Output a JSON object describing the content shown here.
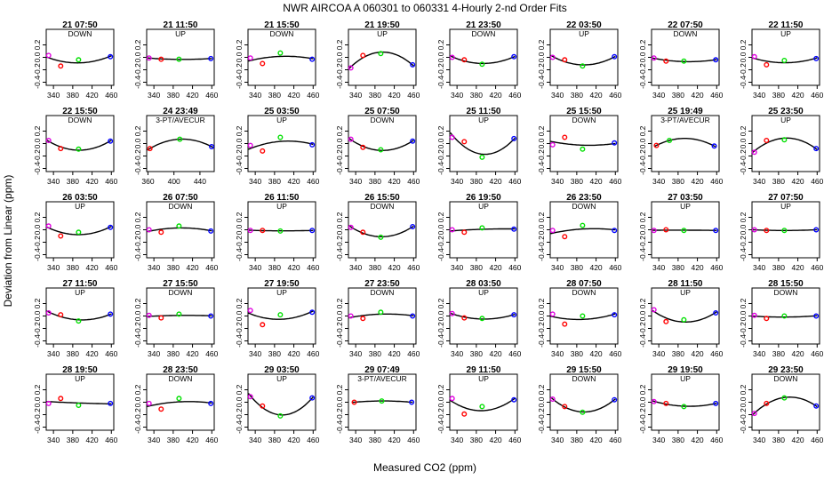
{
  "figure": {
    "title": "NWR   AIRCOA A    060301 to 060331   4-Hourly 2-nd Order Fits",
    "xlabel": "Measured CO2 (ppm)",
    "ylabel": "Deviation from Linear (ppm)"
  },
  "colors": {
    "lo": "#e000e0",
    "mid": "#ff0000",
    "hi": "#00e000",
    "top": "#0000ff",
    "curve": "#000000"
  },
  "chart_data": {
    "type": "scatter",
    "x_ticks_default": [
      340,
      380,
      420,
      460
    ],
    "xlim_default": [
      325,
      465
    ],
    "y_ticks": [
      0.2,
      0.0,
      -0.2,
      -0.4
    ],
    "y_tick_labels": [
      "0.2",
      "0.0",
      "-0.2",
      "-0.4"
    ],
    "ylim": [
      -0.45,
      0.45
    ],
    "panels": [
      {
        "time": "21 07:50",
        "label": "DOWN",
        "y": [
          0.03,
          -0.14,
          -0.04,
          0.01
        ]
      },
      {
        "time": "21 11:50",
        "label": "UP",
        "y": [
          -0.01,
          -0.03,
          -0.03,
          -0.02
        ]
      },
      {
        "time": "21 15:50",
        "label": "DOWN",
        "y": [
          -0.01,
          -0.1,
          0.07,
          -0.03
        ]
      },
      {
        "time": "21 19:50",
        "label": "UP",
        "y": [
          -0.17,
          0.03,
          0.06,
          -0.12
        ]
      },
      {
        "time": "21 23:50",
        "label": "DOWN",
        "y": [
          0.0,
          -0.04,
          -0.11,
          0.01
        ]
      },
      {
        "time": "22 03:50",
        "label": "UP",
        "y": [
          0.0,
          -0.04,
          -0.14,
          0.01
        ]
      },
      {
        "time": "22 07:50",
        "label": "DOWN",
        "y": [
          -0.01,
          -0.06,
          -0.06,
          -0.04
        ]
      },
      {
        "time": "22 11:50",
        "label": "UP",
        "y": [
          0.01,
          -0.12,
          -0.05,
          -0.02
        ]
      },
      {
        "time": "22 15:50",
        "label": "DOWN",
        "y": [
          0.05,
          -0.08,
          -0.09,
          0.04
        ]
      },
      {
        "time": "24 23:49",
        "label": "3-PT/AVECUR",
        "y": [
          -0.08,
          0.07,
          -0.05
        ],
        "x": [
          363,
          409,
          458
        ],
        "xlim": [
          358,
          462
        ],
        "x_ticks": [
          360,
          400,
          440
        ]
      },
      {
        "time": "25 03:50",
        "label": "UP",
        "y": [
          -0.03,
          -0.12,
          0.1,
          -0.02
        ]
      },
      {
        "time": "25 07:50",
        "label": "DOWN",
        "y": [
          0.07,
          -0.06,
          -0.1,
          0.04
        ]
      },
      {
        "time": "25 11:50",
        "label": "UP",
        "y": [
          0.1,
          0.03,
          -0.22,
          0.08
        ]
      },
      {
        "time": "25 15:50",
        "label": "DOWN",
        "y": [
          -0.02,
          0.1,
          -0.09,
          0.01
        ]
      },
      {
        "time": "25 19:49",
        "label": "3-PT/AVECUR",
        "y": [
          -0.03,
          0.05,
          -0.04
        ],
        "x": [
          335,
          362,
          455
        ]
      },
      {
        "time": "25 23:50",
        "label": "UP",
        "y": [
          -0.14,
          0.05,
          0.06,
          -0.08
        ]
      },
      {
        "time": "26 03:50",
        "label": "UP",
        "y": [
          0.06,
          -0.1,
          -0.04,
          0.04
        ]
      },
      {
        "time": "26 07:50",
        "label": "DOWN",
        "y": [
          0.0,
          -0.04,
          0.06,
          -0.02
        ]
      },
      {
        "time": "26 11:50",
        "label": "UP",
        "y": [
          -0.01,
          -0.01,
          -0.02,
          -0.01
        ]
      },
      {
        "time": "26 15:50",
        "label": "DOWN",
        "y": [
          0.04,
          -0.04,
          -0.12,
          0.05
        ]
      },
      {
        "time": "26 19:50",
        "label": "UP",
        "y": [
          0.0,
          -0.04,
          0.03,
          0.01
        ]
      },
      {
        "time": "26 23:50",
        "label": "DOWN",
        "y": [
          -0.01,
          -0.11,
          0.07,
          -0.01
        ]
      },
      {
        "time": "27 03:50",
        "label": "UP",
        "y": [
          -0.01,
          0.0,
          -0.01,
          -0.01
        ]
      },
      {
        "time": "27 07:50",
        "label": "UP",
        "y": [
          0.0,
          -0.01,
          -0.01,
          0.0
        ]
      },
      {
        "time": "27 11:50",
        "label": "UP",
        "y": [
          0.05,
          0.02,
          -0.08,
          0.03
        ]
      },
      {
        "time": "27 15:50",
        "label": "DOWN",
        "y": [
          0.01,
          -0.03,
          0.03,
          0.0
        ]
      },
      {
        "time": "27 19:50",
        "label": "UP",
        "y": [
          0.09,
          -0.14,
          0.02,
          0.06
        ]
      },
      {
        "time": "27 23:50",
        "label": "DOWN",
        "y": [
          0.0,
          -0.04,
          0.06,
          0.0
        ]
      },
      {
        "time": "28 03:50",
        "label": "UP",
        "y": [
          0.04,
          -0.03,
          -0.04,
          0.02
        ]
      },
      {
        "time": "28 07:50",
        "label": "DOWN",
        "y": [
          0.03,
          -0.13,
          0.0,
          0.02
        ]
      },
      {
        "time": "28 11:50",
        "label": "UP",
        "y": [
          0.1,
          -0.09,
          -0.06,
          0.05
        ]
      },
      {
        "time": "28 15:50",
        "label": "DOWN",
        "y": [
          0.01,
          -0.04,
          0.0,
          0.0
        ]
      },
      {
        "time": "28 19:50",
        "label": "UP",
        "y": [
          -0.02,
          0.06,
          -0.05,
          -0.02
        ]
      },
      {
        "time": "28 23:50",
        "label": "DOWN",
        "y": [
          -0.02,
          -0.11,
          0.06,
          -0.02
        ]
      },
      {
        "time": "29 03:50",
        "label": "UP",
        "y": [
          0.09,
          -0.06,
          -0.22,
          0.07
        ]
      },
      {
        "time": "29 07:49",
        "label": "3-PT/AVECUR",
        "y": [
          0.0,
          0.02,
          0.0
        ],
        "x": [
          337,
          394,
          456
        ]
      },
      {
        "time": "29 11:50",
        "label": "UP",
        "y": [
          0.06,
          -0.19,
          -0.07,
          0.04
        ]
      },
      {
        "time": "29 15:50",
        "label": "DOWN",
        "y": [
          0.05,
          -0.07,
          -0.16,
          0.04
        ]
      },
      {
        "time": "29 19:50",
        "label": "UP",
        "y": [
          0.01,
          -0.02,
          -0.07,
          -0.02
        ]
      },
      {
        "time": "29 23:50",
        "label": "DOWN",
        "y": [
          -0.18,
          -0.02,
          0.07,
          -0.06
        ]
      }
    ],
    "x_default": [
      330,
      355,
      392,
      458
    ]
  }
}
